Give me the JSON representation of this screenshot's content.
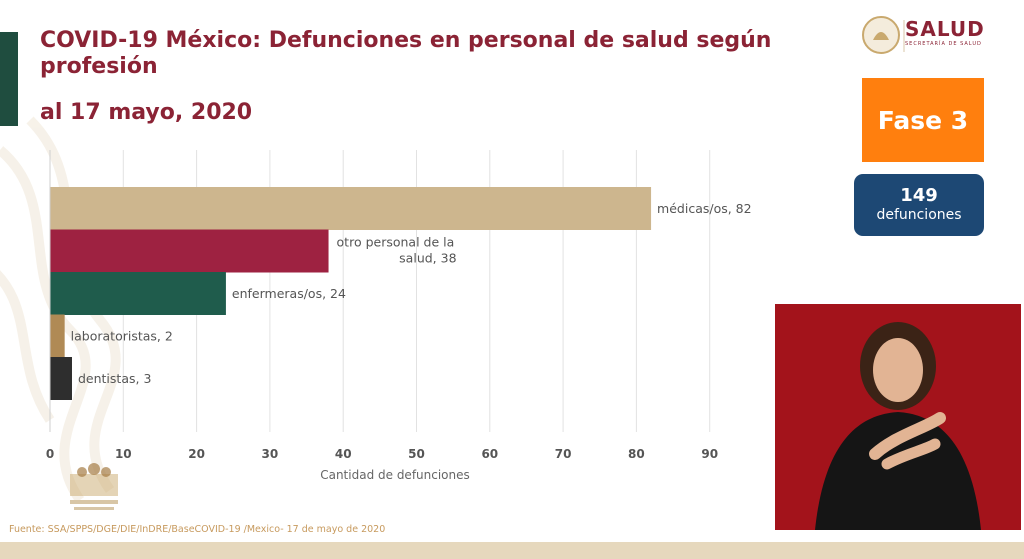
{
  "header": {
    "title": "COVID-19 México: Defunciones en personal de salud según profesión",
    "date": "al 17 mayo, 2020"
  },
  "brand": {
    "name": "SALUD",
    "subtitle": "SECRETARÍA DE SALUD"
  },
  "phase_badge": {
    "label": "Fase 3",
    "color": "#ff7f0e"
  },
  "deaths_badge": {
    "value": "149",
    "label": "defunciones",
    "color": "#1d4874"
  },
  "source": "Fuente: SSA/SPPS/DGE/DIE/InDRE/BaseCOVID-19 /Mexico- 17 de mayo de 2020",
  "chart_data": {
    "type": "bar",
    "orientation": "horizontal",
    "title": "",
    "xlabel": "Cantidad de defunciones",
    "ylabel": "",
    "xlim": [
      0,
      90
    ],
    "xticks": [
      0,
      10,
      20,
      30,
      40,
      50,
      60,
      70,
      80,
      90
    ],
    "grid": true,
    "categories": [
      "médicas/os",
      "otro personal de la salud",
      "enfermeras/os",
      "laboratoristas",
      "dentistas"
    ],
    "values": [
      82,
      38,
      24,
      2,
      3
    ],
    "labels": [
      [
        "médicas/os, 82"
      ],
      [
        "otro personal de la",
        "salud, 38"
      ],
      [
        "enfermeras/os, 24"
      ],
      [
        "laboratoristas, 2"
      ],
      [
        "dentistas, 3"
      ]
    ],
    "colors": [
      "#cdb68e",
      "#9e2241",
      "#1f5c4c",
      "#b08a55",
      "#2e2e2e"
    ]
  },
  "colors": {
    "title": "#8b2335",
    "accent_bar": "#1f4d3f",
    "source_text": "#c79a5e",
    "video_bg": "#a3131b"
  }
}
